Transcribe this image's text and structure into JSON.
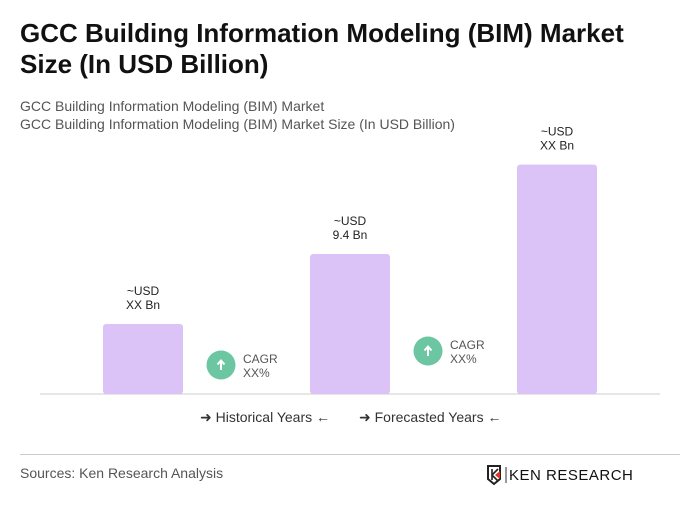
{
  "title": "GCC Building Information Modeling (BIM) Market Size (In USD Billion)",
  "subtitle1": "GCC Building Information Modeling (BIM) Market",
  "subtitle2": "GCC Building Information Modeling (BIM) Market Size (In USD Billion)",
  "chart_data": {
    "type": "bar",
    "categories": [
      "",
      "",
      ""
    ],
    "values": [
      4.7,
      9.4,
      15.4
    ],
    "data_labels": [
      [
        "~USD",
        "XX Bn"
      ],
      [
        "~USD",
        "9.4 Bn"
      ],
      [
        "~USD",
        "XX Bn"
      ]
    ],
    "bar_color": "#dcc3f7",
    "cagr": [
      {
        "label": "CAGR",
        "value": "XX%"
      },
      {
        "label": "CAGR",
        "value": "XX%"
      }
    ],
    "cagr_color": "#6cc6a2",
    "grid": false
  },
  "legend": {
    "historical": "Historical Years",
    "forecasted": "Forecasted Years"
  },
  "source": "Sources: Ken Research Analysis",
  "logo_text": "KEN RESEARCH"
}
